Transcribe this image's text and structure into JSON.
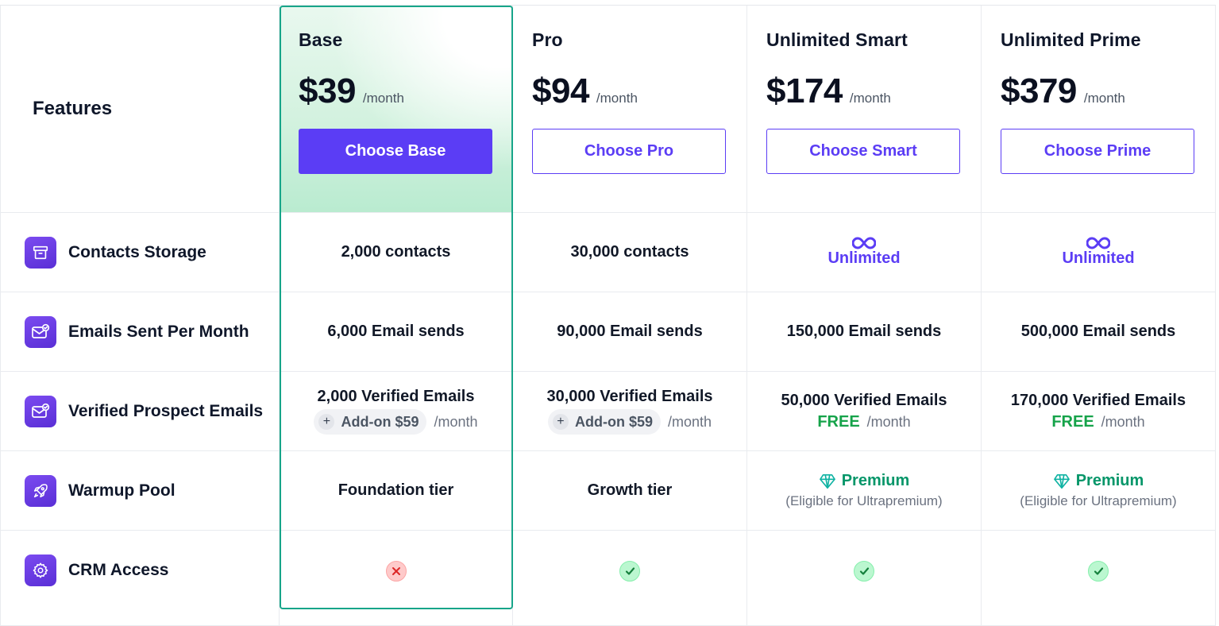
{
  "features_title": "Features",
  "plans": [
    {
      "name": "Base",
      "price": "$39",
      "per": "/month",
      "button": "Choose Base"
    },
    {
      "name": "Pro",
      "price": "$94",
      "per": "/month",
      "button": "Choose Pro"
    },
    {
      "name": "Unlimited Smart",
      "price": "$174",
      "per": "/month",
      "button": "Choose Smart"
    },
    {
      "name": "Unlimited Prime",
      "price": "$379",
      "per": "/month",
      "button": "Choose Prime"
    }
  ],
  "features": [
    {
      "label": "Contacts Storage",
      "icon": "archive-box-icon"
    },
    {
      "label": "Emails Sent Per Month",
      "icon": "envelope-check-icon"
    },
    {
      "label": "Verified Prospect Emails",
      "icon": "envelope-check-icon"
    },
    {
      "label": "Warmup Pool",
      "icon": "rocket-icon"
    },
    {
      "label": "CRM Access",
      "icon": "gear-icon"
    }
  ],
  "contacts": [
    "2,000 contacts",
    "30,000 contacts",
    "Unlimited",
    "Unlimited"
  ],
  "emails_sent": [
    "6,000 Email sends",
    "90,000 Email sends",
    "150,000 Email sends",
    "500,000 Email sends"
  ],
  "verified": [
    {
      "value": "2,000 Verified Emails",
      "addon": "Add-on $59",
      "per": "/month"
    },
    {
      "value": "30,000 Verified Emails",
      "addon": "Add-on $59",
      "per": "/month"
    },
    {
      "value": "50,000 Verified Emails",
      "free": "FREE",
      "per": "/month"
    },
    {
      "value": "170,000 Verified Emails",
      "free": "FREE",
      "per": "/month"
    }
  ],
  "warmup": [
    {
      "value": "Foundation tier"
    },
    {
      "value": "Growth tier"
    },
    {
      "value": "Premium",
      "note": "(Eligible for Ultrapremium)"
    },
    {
      "value": "Premium",
      "note": "(Eligible for Ultrapremium)"
    }
  ],
  "crm": [
    "no",
    "yes",
    "yes",
    "yes"
  ],
  "colors": {
    "accent": "#5b3df5",
    "highlight_border": "#17a589",
    "free_green": "#16a34a",
    "premium_teal": "#059669"
  }
}
